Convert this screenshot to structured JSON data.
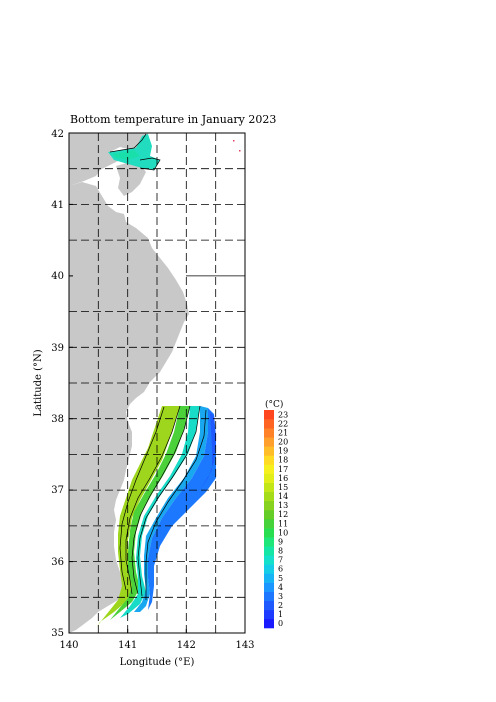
{
  "map": {
    "title": "Bottom temperature in January 2023",
    "xlabel": "Longitude (°E)",
    "ylabel": "Latitude (°N)",
    "xticks": [
      "140",
      "141",
      "142",
      "143"
    ],
    "yticks": [
      "35",
      "36",
      "37",
      "38",
      "39",
      "40",
      "41",
      "42"
    ],
    "xlim": [
      140,
      143
    ],
    "ylim": [
      35,
      42
    ],
    "grid": "dashed every 0.5 degrees",
    "land_color": "#c8c8c8"
  },
  "colorbar": {
    "unit": "(°C)",
    "labels": [
      "0",
      "1",
      "2",
      "3",
      "4",
      "5",
      "6",
      "7",
      "8",
      "9",
      "10",
      "11",
      "12",
      "13",
      "14",
      "15",
      "16",
      "17",
      "18",
      "19",
      "20",
      "21",
      "22",
      "23"
    ],
    "colors": [
      "#1a1aff",
      "#1e3cff",
      "#1f5aff",
      "#1e78ff",
      "#1b95ff",
      "#17b4f5",
      "#15cde6",
      "#14e0cc",
      "#15e6a5",
      "#1ee678",
      "#28de50",
      "#46d23a",
      "#64cd28",
      "#87d21e",
      "#a5dc19",
      "#c3e619",
      "#e1ee19",
      "#f5f01e",
      "#ffdc23",
      "#ffbe28",
      "#ffa02d",
      "#ff8228",
      "#ff6423",
      "#ff461e"
    ]
  }
}
